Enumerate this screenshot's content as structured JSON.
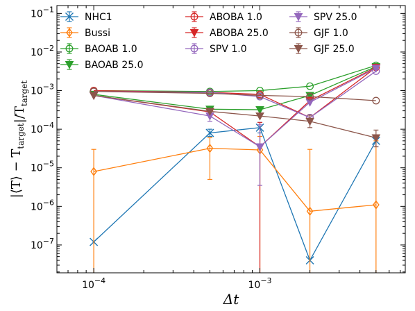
{
  "chart_data": {
    "type": "line",
    "x_scale": "log",
    "y_scale": "log",
    "xlabel_math": "Δt",
    "ylabel_math": "|⟨T⟩ − T_target|/T_target",
    "xlim": [
      6e-05,
      0.0075
    ],
    "ylim": [
      1.9e-08,
      0.16
    ],
    "x_ticks": [
      {
        "value": 0.0001,
        "base": "10",
        "exp": "−4"
      },
      {
        "value": 0.001,
        "base": "10",
        "exp": "−3"
      }
    ],
    "y_ticks": [
      {
        "value": 1e-07,
        "base": "10",
        "exp": "−7"
      },
      {
        "value": 1e-06,
        "base": "10",
        "exp": "−6"
      },
      {
        "value": 1e-05,
        "base": "10",
        "exp": "−5"
      },
      {
        "value": 0.0001,
        "base": "10",
        "exp": "−4"
      },
      {
        "value": 0.001,
        "base": "10",
        "exp": "−3"
      },
      {
        "value": 0.01,
        "base": "10",
        "exp": "−2"
      },
      {
        "value": 0.1,
        "base": "10",
        "exp": "−1"
      }
    ],
    "x": [
      0.0001,
      0.0005,
      0.001,
      0.002,
      0.005
    ],
    "legend_position": "top, 3 columns",
    "grid": false,
    "series": [
      {
        "name": "NHC1",
        "color": "#1f77b4",
        "marker": "x",
        "values": [
          1.2e-07,
          8e-05,
          0.00011,
          4e-08,
          5e-05
        ],
        "errors": [
          null,
          [
            6.5e-05,
            0.0001
          ],
          [
            8e-05,
            0.00015
          ],
          null,
          [
            3.5e-05,
            7e-05
          ]
        ]
      },
      {
        "name": "Bussi",
        "color": "#ff7f0e",
        "marker": "diamond",
        "values": [
          8e-06,
          3.2e-05,
          2.9e-05,
          7.5e-07,
          1.1e-06
        ],
        "errors": [
          [
            1e-09,
            3e-05
          ],
          [
            5e-06,
            6e-05
          ],
          [
            1e-09,
            6.5e-05
          ],
          [
            1e-09,
            3e-05
          ],
          [
            1e-09,
            5e-05
          ]
        ]
      },
      {
        "name": "BAOAB 1.0",
        "color": "#2ca02c",
        "marker": "circle-open",
        "values": [
          0.001,
          0.00095,
          0.001,
          0.0013,
          0.0045
        ],
        "errors": [
          null,
          null,
          null,
          null,
          null
        ]
      },
      {
        "name": "BAOAB 25.0",
        "color": "#2ca02c",
        "marker": "triangle-down",
        "values": [
          0.0008,
          0.00033,
          0.00032,
          0.00075,
          0.0042
        ],
        "errors": [
          null,
          null,
          null,
          null,
          null
        ]
      },
      {
        "name": "ABOBA 1.0",
        "color": "#d62728",
        "marker": "circle-open",
        "values": [
          0.001,
          0.0009,
          0.0008,
          0.0002,
          0.004
        ],
        "errors": [
          null,
          null,
          null,
          null,
          null
        ]
      },
      {
        "name": "ABOBA 25.0",
        "color": "#d62728",
        "marker": "triangle-down",
        "values": [
          0.00075,
          0.00028,
          3.5e-05,
          0.00055,
          0.004
        ],
        "errors": [
          null,
          null,
          [
            1e-09,
            0.00015
          ],
          null,
          null
        ]
      },
      {
        "name": "SPV 1.0",
        "color": "#9467bd",
        "marker": "circle-open",
        "values": [
          0.00095,
          0.0009,
          0.0007,
          0.0002,
          0.0032
        ],
        "errors": [
          null,
          null,
          null,
          null,
          null
        ]
      },
      {
        "name": "SPV 25.0",
        "color": "#9467bd",
        "marker": "triangle-down",
        "values": [
          0.00075,
          0.00022,
          3.5e-05,
          0.0005,
          0.0038
        ],
        "errors": [
          null,
          [
            0.00016,
            0.0003
          ],
          [
            3.5e-06,
            0.00013
          ],
          null,
          null
        ]
      },
      {
        "name": "GJF 1.0",
        "color": "#8c564b",
        "marker": "circle-open",
        "values": [
          0.00095,
          0.00085,
          0.00075,
          0.0007,
          0.00055
        ],
        "errors": [
          null,
          null,
          null,
          null,
          null
        ]
      },
      {
        "name": "GJF 25.0",
        "color": "#8c564b",
        "marker": "triangle-down",
        "values": [
          0.00075,
          0.00029,
          0.00022,
          0.00016,
          6e-05
        ],
        "errors": [
          null,
          null,
          null,
          [
            0.00011,
            0.00023
          ],
          [
            3.5e-05,
            9.5e-05
          ]
        ]
      }
    ]
  }
}
